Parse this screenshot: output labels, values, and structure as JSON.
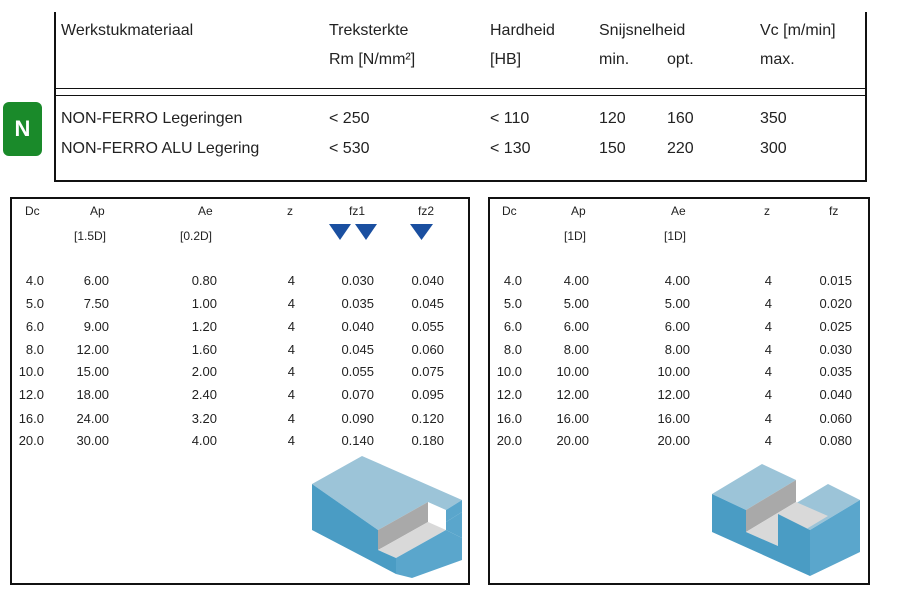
{
  "material_table": {
    "badge": "N",
    "headers": {
      "material": "Werkstukmateriaal",
      "strength_line1": "Treksterkte",
      "strength_line2": "Rm [N/mm²]",
      "hardness_line1": "Hardheid",
      "hardness_line2": "[HB]",
      "speed_line1": "Snijsnelheid",
      "speed_min": "min.",
      "speed_opt": "opt.",
      "vc_line1": "Vc [m/min]",
      "vc_max": "max."
    },
    "rows": [
      {
        "material": "NON-FERRO Legeringen",
        "strength": "< 250",
        "hardness": "< 110",
        "min": "120",
        "opt": "160",
        "max": "350"
      },
      {
        "material": "NON-FERRO ALU Legering",
        "strength": "< 530",
        "hardness": "< 130",
        "min": "150",
        "opt": "220",
        "max": "300"
      }
    ]
  },
  "side_milling": {
    "headers": {
      "dc": "Dc",
      "ap": "Ap",
      "ap_sub": "[1.5D]",
      "ae": "Ae",
      "ae_sub": "[0.2D]",
      "z": "z",
      "fz1": "fz1",
      "fz2": "fz2"
    },
    "colors": {
      "marker": "#1a4fa0",
      "block_top": "#9cc4d8",
      "block_side": "#4a9cc4",
      "cut_face": "#a9a9a9"
    },
    "rows": [
      {
        "dc": "4.0",
        "ap": "6.00",
        "ae": "0.80",
        "z": "4",
        "fz1": "0.030",
        "fz2": "0.040"
      },
      {
        "dc": "5.0",
        "ap": "7.50",
        "ae": "1.00",
        "z": "4",
        "fz1": "0.035",
        "fz2": "0.045"
      },
      {
        "dc": "6.0",
        "ap": "9.00",
        "ae": "1.20",
        "z": "4",
        "fz1": "0.040",
        "fz2": "0.055"
      },
      {
        "dc": "8.0",
        "ap": "12.00",
        "ae": "1.60",
        "z": "4",
        "fz1": "0.045",
        "fz2": "0.060"
      },
      {
        "dc": "10.0",
        "ap": "15.00",
        "ae": "2.00",
        "z": "4",
        "fz1": "0.055",
        "fz2": "0.075"
      },
      {
        "dc": "12.0",
        "ap": "18.00",
        "ae": "2.40",
        "z": "4",
        "fz1": "0.070",
        "fz2": "0.095"
      },
      {
        "dc": "16.0",
        "ap": "24.00",
        "ae": "3.20",
        "z": "4",
        "fz1": "0.090",
        "fz2": "0.120"
      },
      {
        "dc": "20.0",
        "ap": "30.00",
        "ae": "4.00",
        "z": "4",
        "fz1": "0.140",
        "fz2": "0.180"
      }
    ]
  },
  "slot_milling": {
    "headers": {
      "dc": "Dc",
      "ap": "Ap",
      "ap_sub": "[1D]",
      "ae": "Ae",
      "ae_sub": "[1D]",
      "z": "z",
      "fz": "fz"
    },
    "rows": [
      {
        "dc": "4.0",
        "ap": "4.00",
        "ae": "4.00",
        "z": "4",
        "fz": "0.015"
      },
      {
        "dc": "5.0",
        "ap": "5.00",
        "ae": "5.00",
        "z": "4",
        "fz": "0.020"
      },
      {
        "dc": "6.0",
        "ap": "6.00",
        "ae": "6.00",
        "z": "4",
        "fz": "0.025"
      },
      {
        "dc": "8.0",
        "ap": "8.00",
        "ae": "8.00",
        "z": "4",
        "fz": "0.030"
      },
      {
        "dc": "10.0",
        "ap": "10.00",
        "ae": "10.00",
        "z": "4",
        "fz": "0.035"
      },
      {
        "dc": "12.0",
        "ap": "12.00",
        "ae": "12.00",
        "z": "4",
        "fz": "0.040"
      },
      {
        "dc": "16.0",
        "ap": "16.00",
        "ae": "16.00",
        "z": "4",
        "fz": "0.060"
      },
      {
        "dc": "20.0",
        "ap": "20.00",
        "ae": "20.00",
        "z": "4",
        "fz": "0.080"
      }
    ]
  }
}
